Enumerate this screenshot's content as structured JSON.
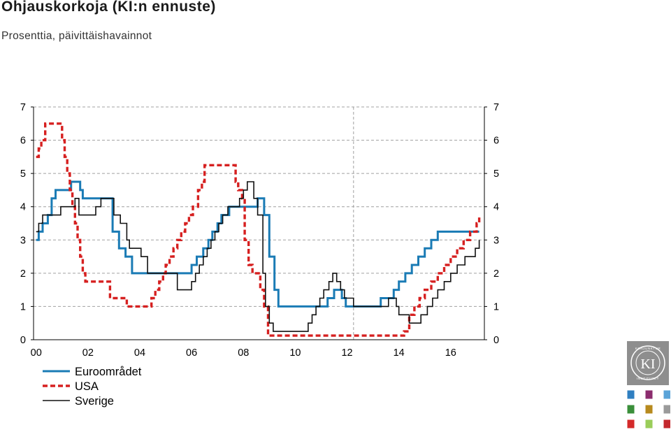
{
  "title": "Ohjauskorkoja (KI:n ennuste)",
  "subtitle": "Prosenttia, päivittäishavainnot",
  "logo": {
    "top_text": "KONJUNKTUR",
    "center_text": "KI",
    "bottom_text": "INSTITUTET"
  },
  "colors": {
    "euro": "#1a7bb5",
    "usa": "#d62020",
    "sweden": "#111111",
    "grid": "#a0a0a0",
    "swatches": [
      "#2f7fc1",
      "#8b2c6e",
      "#5aa3d8",
      "#3a8f3a",
      "#b78a1e",
      "#9a9a9a",
      "#d42a2a",
      "#9acd5a",
      "#c4282e"
    ]
  },
  "chart_data": {
    "type": "line",
    "title": "Ohjauskorkoja (KI:n ennuste)",
    "subtitle": "Prosenttia, päivittäishavainnot",
    "xlabel": "",
    "ylabel": "",
    "xlim": [
      1999.9,
      2017.3
    ],
    "ylim": [
      0,
      7
    ],
    "y_ticks": [
      0,
      1,
      2,
      3,
      4,
      5,
      6,
      7
    ],
    "x_tick_labels": [
      "00",
      "02",
      "04",
      "06",
      "08",
      "10",
      "12",
      "14",
      "16"
    ],
    "x_tick_years": [
      2000,
      2002,
      2004,
      2006,
      2008,
      2010,
      2012,
      2014,
      2016
    ],
    "forecast_start": 2012.25,
    "grid": true,
    "legend_position": "bottom-left",
    "series": [
      {
        "name": "Euroområdet",
        "x": [
          2000.0,
          2000.1,
          2000.25,
          2000.45,
          2000.6,
          2000.75,
          2001.35,
          2001.7,
          2001.8,
          2002.95,
          2003.2,
          2003.45,
          2003.7,
          2006.0,
          2006.2,
          2006.45,
          2006.65,
          2006.8,
          2007.0,
          2007.15,
          2007.45,
          2008.55,
          2008.8,
          2009.0,
          2009.2,
          2009.35,
          2011.25,
          2011.5,
          2011.8,
          2011.95,
          2012.25,
          2013.3,
          2013.8,
          2014.0,
          2014.25,
          2014.5,
          2014.75,
          2015.0,
          2015.25,
          2015.5,
          2015.75,
          2016.0,
          2016.25,
          2016.5,
          2016.8,
          2017.1
        ],
        "y": [
          3.0,
          3.25,
          3.5,
          3.75,
          4.25,
          4.5,
          4.75,
          4.5,
          4.25,
          3.25,
          2.75,
          2.5,
          2.0,
          2.25,
          2.5,
          2.75,
          3.0,
          3.25,
          3.5,
          3.75,
          4.0,
          4.25,
          3.75,
          2.5,
          1.5,
          1.0,
          1.25,
          1.5,
          1.25,
          1.0,
          1.0,
          1.25,
          1.5,
          1.75,
          2.0,
          2.25,
          2.5,
          2.75,
          3.0,
          3.25,
          3.25,
          3.25,
          3.25,
          3.25,
          3.25,
          3.25
        ]
      },
      {
        "name": "USA",
        "x": [
          2000.0,
          2000.1,
          2000.2,
          2000.35,
          2001.0,
          2001.1,
          2001.2,
          2001.3,
          2001.4,
          2001.5,
          2001.6,
          2001.7,
          2001.8,
          2001.9,
          2002.85,
          2003.5,
          2004.45,
          2004.6,
          2004.75,
          2004.9,
          2005.0,
          2005.15,
          2005.3,
          2005.45,
          2005.6,
          2005.75,
          2005.9,
          2006.05,
          2006.25,
          2006.4,
          2006.5,
          2007.7,
          2007.8,
          2007.95,
          2008.05,
          2008.2,
          2008.35,
          2008.65,
          2008.8,
          2008.95,
          2012.25,
          2014.2,
          2014.4,
          2014.6,
          2014.8,
          2015.0,
          2015.25,
          2015.5,
          2015.75,
          2016.0,
          2016.25,
          2016.5,
          2016.75,
          2017.0,
          2017.1
        ],
        "y": [
          5.5,
          5.75,
          6.0,
          6.5,
          6.0,
          5.5,
          5.0,
          4.5,
          4.0,
          3.5,
          3.0,
          2.5,
          2.0,
          1.75,
          1.25,
          1.0,
          1.25,
          1.5,
          1.75,
          2.0,
          2.25,
          2.5,
          2.75,
          3.0,
          3.25,
          3.5,
          3.75,
          4.0,
          4.5,
          4.75,
          5.25,
          4.75,
          4.5,
          4.25,
          3.0,
          2.25,
          2.0,
          1.5,
          1.0,
          0.125,
          0.125,
          0.25,
          0.75,
          1.0,
          1.25,
          1.5,
          1.75,
          2.0,
          2.25,
          2.5,
          2.75,
          3.0,
          3.25,
          3.5,
          3.75
        ]
      },
      {
        "name": "Sverige",
        "x": [
          2000.0,
          2000.1,
          2000.25,
          2000.95,
          2001.5,
          2001.65,
          2001.85,
          2002.3,
          2002.5,
          2003.0,
          2003.25,
          2003.5,
          2003.6,
          2004.05,
          2004.3,
          2005.45,
          2006.0,
          2006.15,
          2006.3,
          2006.45,
          2006.6,
          2006.75,
          2006.9,
          2007.05,
          2007.2,
          2007.4,
          2007.5,
          2007.65,
          2007.85,
          2008.0,
          2008.15,
          2008.4,
          2008.55,
          2008.75,
          2008.85,
          2009.0,
          2009.15,
          2009.3,
          2009.5,
          2009.65,
          2010.5,
          2010.65,
          2010.8,
          2010.95,
          2011.1,
          2011.3,
          2011.45,
          2011.6,
          2011.75,
          2011.9,
          2012.25,
          2013.25,
          2013.6,
          2013.9,
          2014.0,
          2014.4,
          2014.6,
          2014.85,
          2015.1,
          2015.3,
          2015.5,
          2015.75,
          2016.0,
          2016.25,
          2016.55,
          2016.95,
          2017.1
        ],
        "y": [
          3.25,
          3.5,
          3.75,
          4.0,
          4.25,
          3.75,
          3.75,
          4.0,
          4.25,
          3.75,
          3.5,
          3.0,
          2.75,
          2.5,
          2.0,
          1.5,
          1.75,
          2.0,
          2.25,
          2.5,
          2.75,
          3.0,
          3.25,
          3.5,
          3.75,
          4.0,
          4.0,
          4.0,
          4.25,
          4.5,
          4.75,
          4.25,
          3.75,
          2.0,
          1.0,
          0.5,
          0.25,
          0.25,
          0.25,
          0.25,
          0.5,
          0.75,
          1.0,
          1.25,
          1.5,
          1.75,
          2.0,
          1.75,
          1.5,
          1.25,
          1.0,
          1.0,
          1.25,
          1.0,
          0.75,
          0.5,
          0.5,
          0.75,
          1.0,
          1.25,
          1.5,
          1.75,
          2.0,
          2.25,
          2.5,
          2.75,
          3.0
        ]
      }
    ]
  }
}
